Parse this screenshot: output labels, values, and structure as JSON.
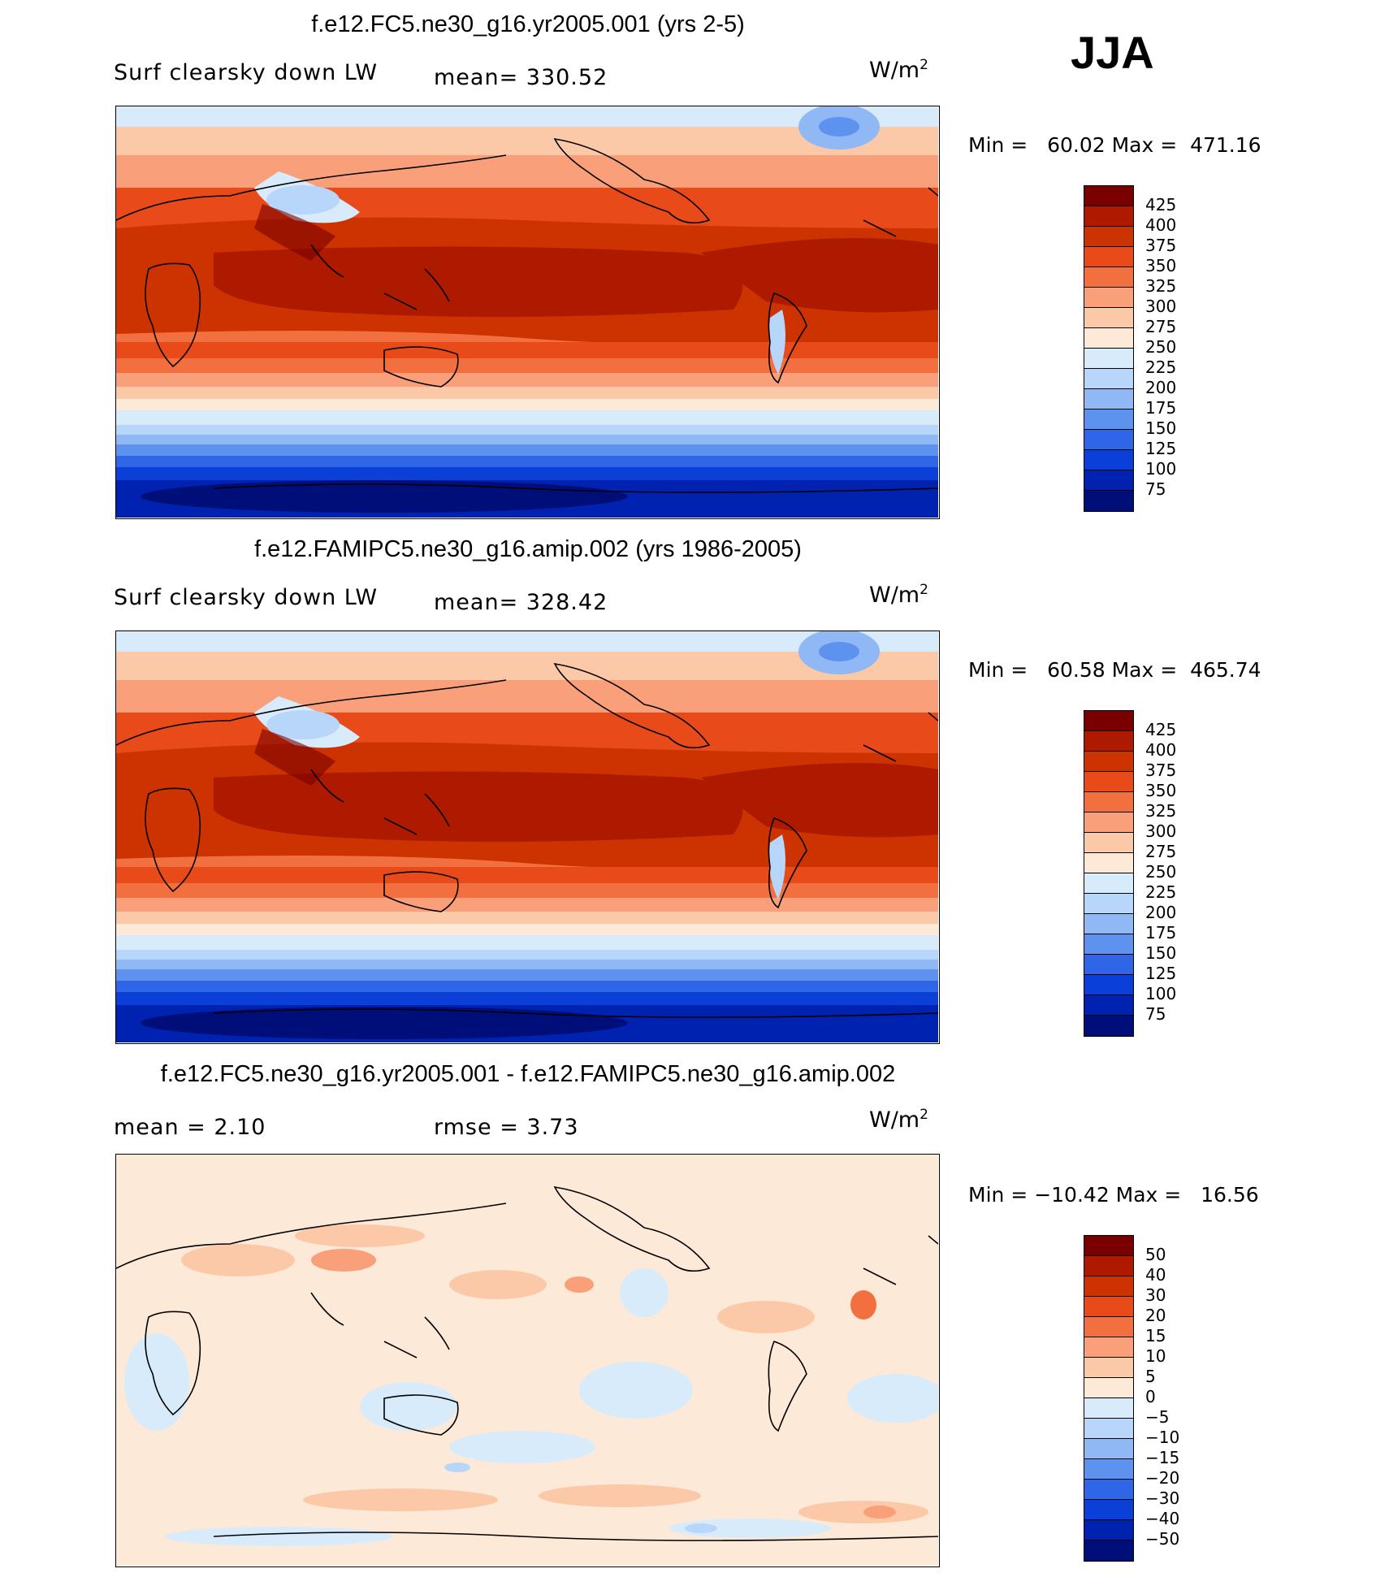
{
  "season": "JJA",
  "panels": [
    {
      "title": "f.e12.FC5.ne30_g16.yr2005.001 (yrs 2-5)",
      "variable": "Surf clearsky down LW",
      "stat_text": "mean= 330.52",
      "units_base": "W/m",
      "units_exp": "2",
      "minmax": "Min =   60.02 Max =  471.16"
    },
    {
      "title": "f.e12.FAMIPC5.ne30_g16.amip.002 (yrs 1986-2005)",
      "variable": "Surf clearsky down LW",
      "stat_text": "mean= 328.42",
      "units_base": "W/m",
      "units_exp": "2",
      "minmax": "Min =   60.58 Max =  465.74"
    },
    {
      "title": "f.e12.FC5.ne30_g16.yr2005.001 - f.e12.FAMIPC5.ne30_g16.amip.002",
      "mean_text": "mean =    2.10",
      "rmse_text": "rmse =    3.73",
      "units_base": "W/m",
      "units_exp": "2",
      "minmax": "Min = −10.42 Max =   16.56"
    }
  ],
  "colorbar_abs": {
    "labels": [
      "425",
      "400",
      "375",
      "350",
      "325",
      "300",
      "275",
      "250",
      "225",
      "200",
      "175",
      "150",
      "125",
      "100",
      "75"
    ],
    "colors": [
      "#7a0000",
      "#ad1a00",
      "#cc3300",
      "#e84a1a",
      "#f27040",
      "#f9a07a",
      "#fcc9a8",
      "#fde9d8",
      "#d8ebfb",
      "#b8d6fa",
      "#8fb8f5",
      "#5e92ef",
      "#2f66e8",
      "#0a3fd8",
      "#0022b0",
      "#000e7a"
    ]
  },
  "colorbar_diff": {
    "labels": [
      "50",
      "40",
      "30",
      "20",
      "15",
      "10",
      "5",
      "0",
      "−5",
      "−10",
      "−15",
      "−20",
      "−30",
      "−40",
      "−50"
    ],
    "colors": [
      "#7a0000",
      "#ad1a00",
      "#cc3300",
      "#e84a1a",
      "#f27040",
      "#f9a07a",
      "#fcc9a8",
      "#fde9d8",
      "#d8ebfb",
      "#b8d6fa",
      "#8fb8f5",
      "#5e92ef",
      "#2f66e8",
      "#0a3fd8",
      "#0022b0",
      "#000e7a"
    ]
  },
  "map_colors": {
    "polar_north": "#d8ebfb",
    "ocean_warm": "#e84a1a",
    "tropics": "#ad1a00",
    "subtropics": "#f27040",
    "midlat": "#f9a07a",
    "mid_south": "#fcc9a8",
    "cool": "#fde9d8",
    "south_band1": "#d8ebfb",
    "south_band2": "#8fb8f5",
    "south_band3": "#2f66e8",
    "antarctic": "#0022b0",
    "antarctic_core": "#000e7a",
    "tibet": "#d8ebfb",
    "greenland": "#8fb8f5",
    "diff_base": "#fde9d8",
    "diff_pos": "#fcc9a8",
    "diff_neg": "#d8ebfb",
    "diff_pos_strong": "#f9a07a",
    "diff_neg_strong": "#b8d6fa"
  }
}
